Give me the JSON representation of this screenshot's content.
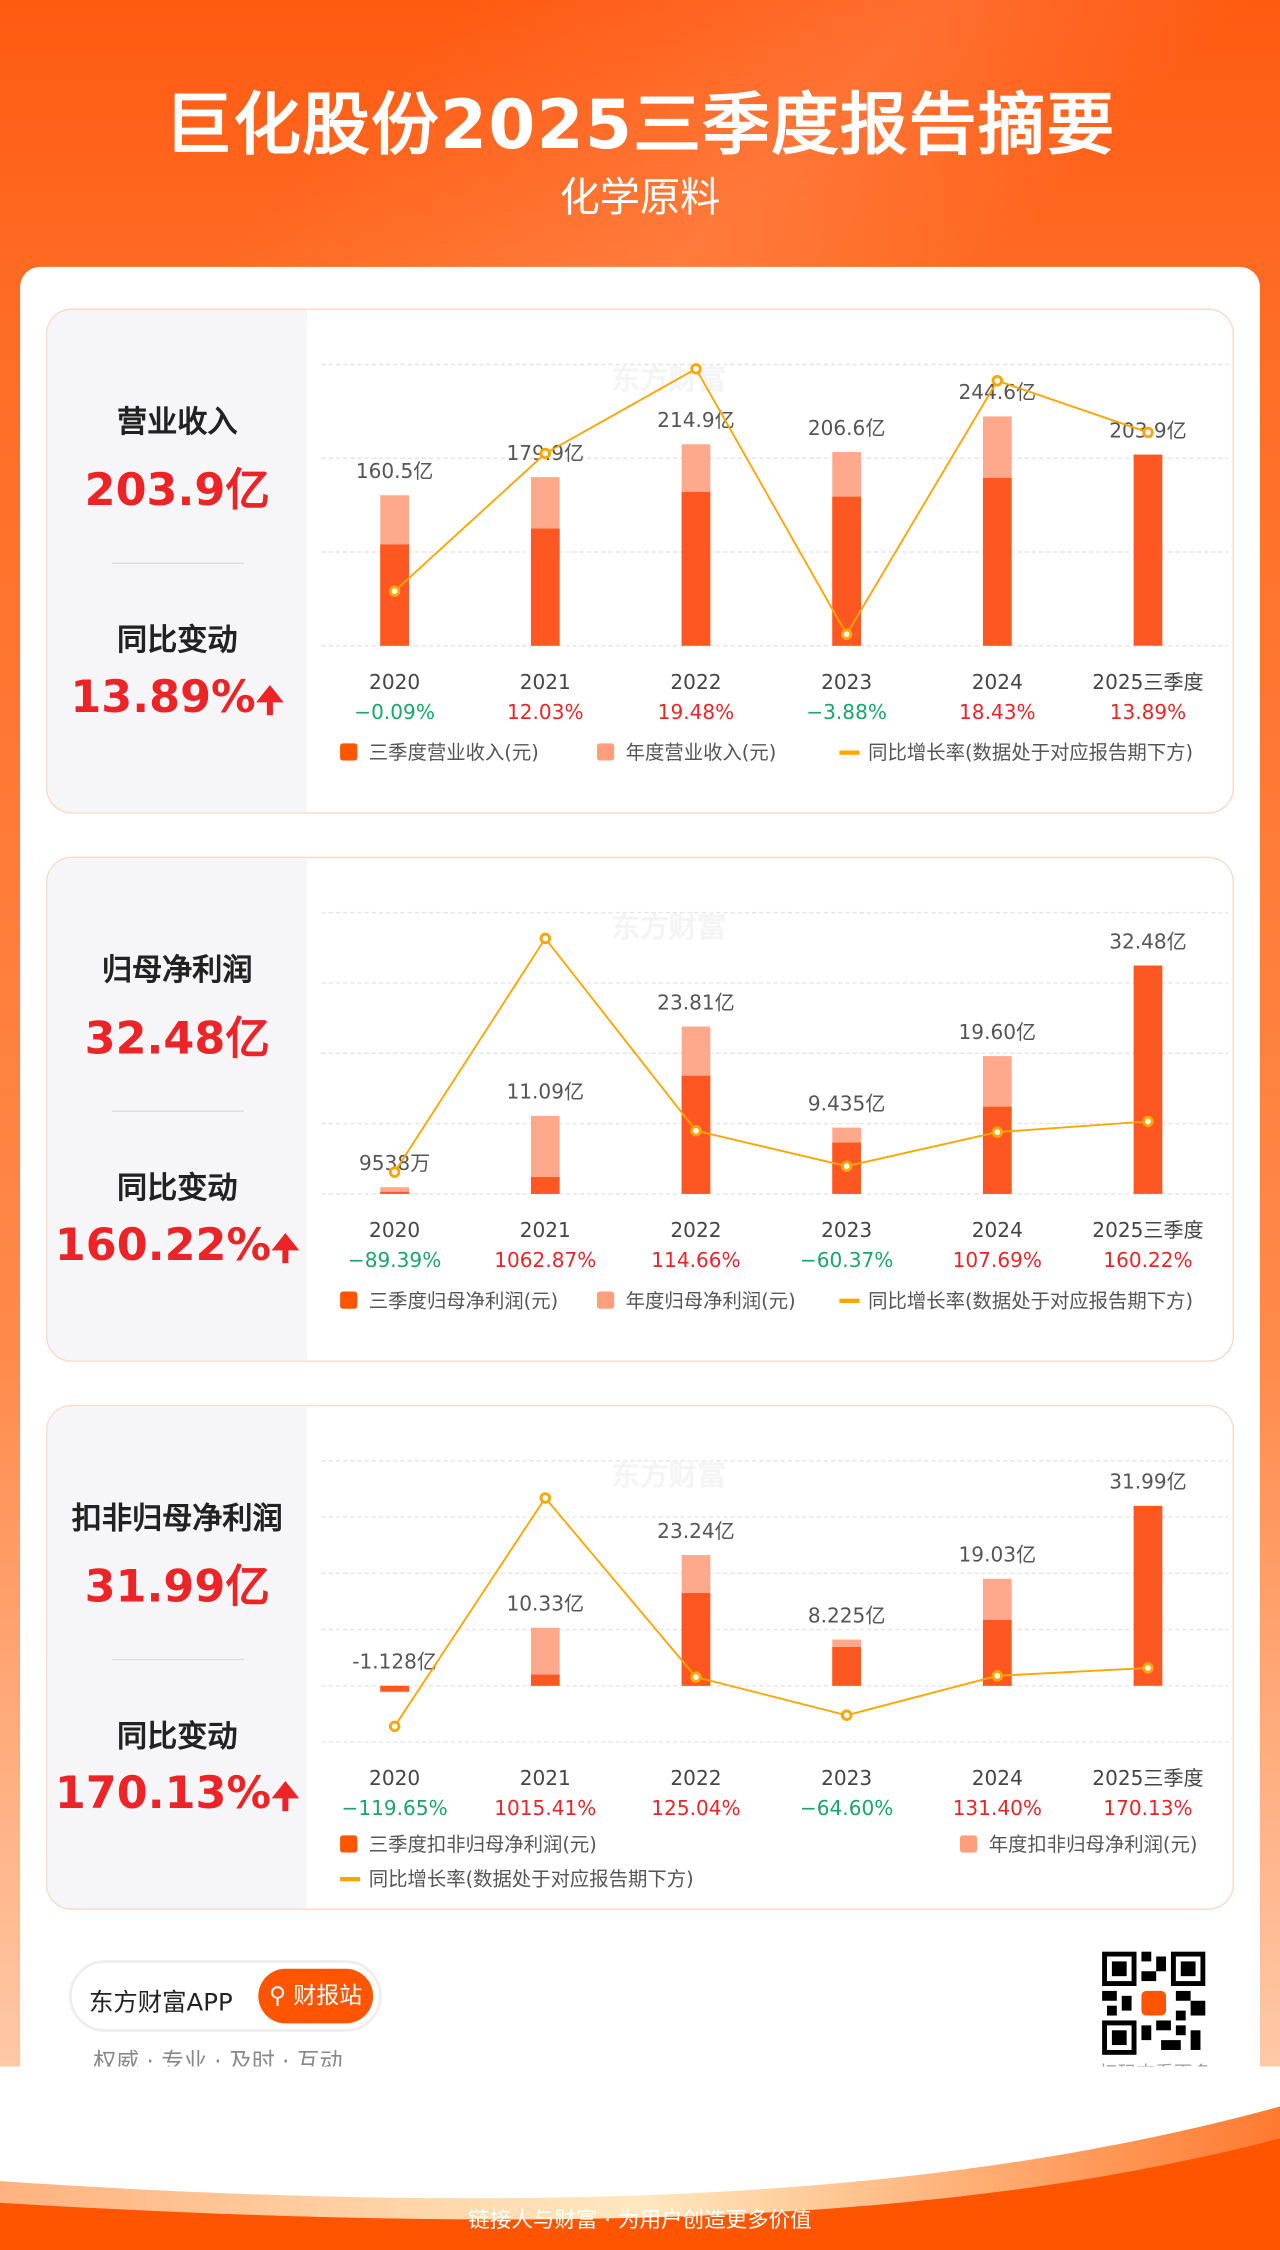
{
  "header": {
    "title": "巨化股份2025三季度报告摘要",
    "subtitle": "化学原料"
  },
  "colors": {
    "q3": "#ff5722",
    "annual": "#ffa98c",
    "line": "#ffa500",
    "up": "#ec2427",
    "down": "#1aa56a"
  },
  "cards": [
    {
      "label": "营业收入",
      "value": "203.9亿",
      "change_label": "同比变动",
      "change": "13.89%",
      "arrow": "🠉"
    },
    {
      "label": "归母净利润",
      "value": "32.48亿",
      "change_label": "同比变动",
      "change": "160.22%",
      "arrow": "🠉"
    },
    {
      "label": "扣非归母净利润",
      "value": "31.99亿",
      "change_label": "同比变动",
      "change": "170.13%",
      "arrow": "🠉"
    }
  ],
  "chart_data": [
    {
      "type": "bar",
      "categories": [
        "2020",
        "2021",
        "2022",
        "2023",
        "2024",
        "2025三季度"
      ],
      "ylim": [
        0,
        300
      ],
      "grid_step": 100,
      "line_ylim": [
        -4.89,
        19.86
      ],
      "series": [
        {
          "name": "三季度营业收入(元)",
          "values": [
            108,
            125,
            164,
            159,
            179,
            203.9
          ]
        },
        {
          "name": "年度营业收入(元)",
          "values": [
            160.5,
            179.9,
            214.9,
            206.6,
            244.6,
            null
          ]
        },
        {
          "name": "同比增长率(数据处于对应报告期下方)",
          "values": [
            -0.09,
            12.03,
            19.48,
            -3.88,
            18.43,
            13.89
          ]
        }
      ],
      "value_labels": [
        "160.5亿",
        "179.9亿",
        "214.9亿",
        "206.6亿",
        "244.6亿",
        "203.9亿"
      ],
      "pct_labels": [
        "-0.09%",
        "12.03%",
        "19.48%",
        "-3.88%",
        "18.43%",
        "13.89%"
      ]
    },
    {
      "type": "bar",
      "categories": [
        "2020",
        "2021",
        "2022",
        "2023",
        "2024",
        "2025三季度"
      ],
      "ylim": [
        0,
        40
      ],
      "grid_step": 10,
      "line_ylim": [
        -197,
        1190
      ],
      "series": [
        {
          "name": "三季度归母净利润(元)",
          "values": [
            0.3,
            2.4,
            16.8,
            7.3,
            12.4,
            32.48
          ]
        },
        {
          "name": "年度归母净利润(元)",
          "values": [
            0.9538,
            11.09,
            23.81,
            9.435,
            19.6,
            null
          ]
        },
        {
          "name": "同比增长率(数据处于对应报告期下方)",
          "values": [
            -89.39,
            1062.87,
            114.66,
            -60.37,
            107.69,
            160.22
          ]
        }
      ],
      "value_labels": [
        "9538万",
        "11.09亿",
        "23.81亿",
        "9.435亿",
        "19.60亿",
        "32.48亿"
      ],
      "pct_labels": [
        "-89.39%",
        "1062.87%",
        "114.66%",
        "-60.37%",
        "107.69%",
        "160.22%"
      ]
    },
    {
      "type": "bar",
      "categories": [
        "2020",
        "2021",
        "2022",
        "2023",
        "2024",
        "2025三季度"
      ],
      "ylim": [
        -10,
        40
      ],
      "grid_step": 10,
      "line_ylim": [
        -198,
        1200
      ],
      "series": [
        {
          "name": "三季度扣非归母净利润(元)",
          "values": [
            -1.0,
            2.0,
            16.5,
            6.9,
            11.7,
            31.99
          ]
        },
        {
          "name": "年度扣非归母净利润(元)",
          "values": [
            -1.128,
            10.33,
            23.24,
            8.225,
            19.03,
            null
          ]
        },
        {
          "name": "同比增长率(数据处于对应报告期下方)",
          "values": [
            -119.65,
            1015.41,
            125.04,
            -64.6,
            131.4,
            170.13
          ]
        }
      ],
      "value_labels": [
        "-1.128亿",
        "10.33亿",
        "23.24亿",
        "8.225亿",
        "19.03亿",
        "31.99亿"
      ],
      "pct_labels": [
        "-119.65%",
        "1015.41%",
        "125.04%",
        "-64.60%",
        "131.40%",
        "170.13%"
      ]
    }
  ],
  "footer": {
    "app": "东方财富APP",
    "button": "财报站",
    "tagline": "权威 · 专业 · 及时 · 互动",
    "qr_text": "扫码查看更多",
    "slogan": "链接人与财富 · 为用户创造更多价值"
  }
}
